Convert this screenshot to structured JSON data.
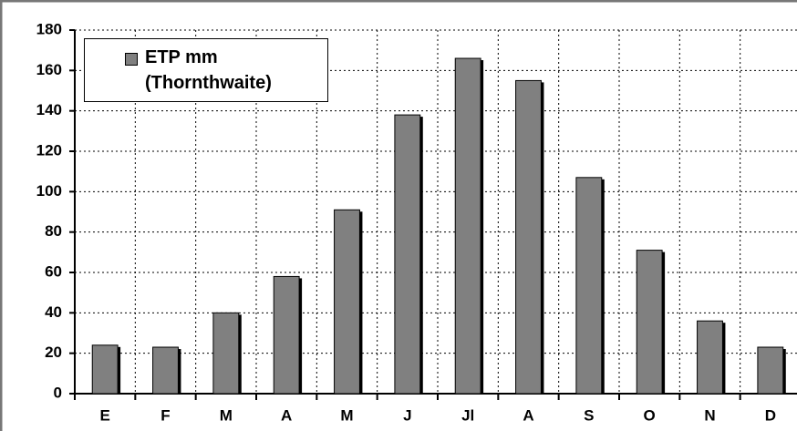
{
  "chart_data": {
    "type": "bar",
    "categories": [
      "E",
      "F",
      "M",
      "A",
      "M",
      "J",
      "Jl",
      "A",
      "S",
      "O",
      "N",
      "D"
    ],
    "series": [
      {
        "name": "ETP mm (Thornthwaite)",
        "color": "#808080",
        "values": [
          24,
          23,
          40,
          58,
          91,
          138,
          166,
          155,
          107,
          71,
          36,
          23
        ]
      }
    ],
    "ylim": [
      0,
      180
    ],
    "yticks": [
      0,
      20,
      40,
      60,
      80,
      100,
      120,
      140,
      160,
      180
    ],
    "grid": true,
    "legend": "top-left"
  }
}
